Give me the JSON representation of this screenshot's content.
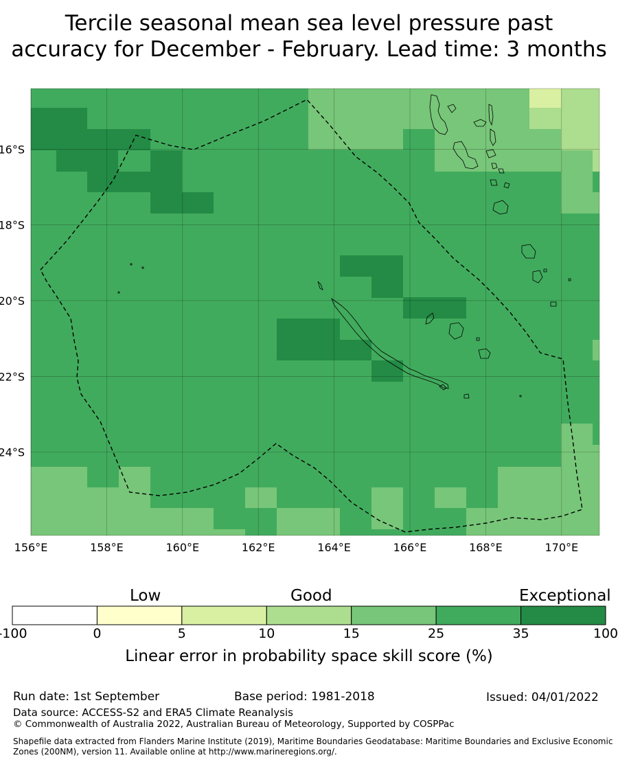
{
  "title": {
    "line1": "Tercile seasonal mean sea level pressure past",
    "line2": "accuracy for December - February. Lead time: 3 months"
  },
  "map": {
    "lon_ticks": [
      "156°E",
      "158°E",
      "160°E",
      "162°E",
      "164°E",
      "166°E",
      "168°E",
      "170°E"
    ],
    "lat_ticks": [
      "16°S",
      "18°S",
      "20°S",
      "22°S",
      "24°S"
    ],
    "extent": {
      "lon_min": 156,
      "lon_max": 171,
      "lat_min": -26.2,
      "lat_max": -14.4
    },
    "skill_grid_note_colors": {
      "35_100": "#238b45",
      "25_35": "#41ab5d",
      "15_25": "#78c679",
      "10_15": "#addd8e",
      "5_10": "#d9f0a3",
      "0_5": "#ffffcc"
    }
  },
  "colorbar": {
    "categories": [
      "Low",
      "Good",
      "Exceptional"
    ],
    "ticks": [
      "-100",
      "0",
      "5",
      "10",
      "15",
      "25",
      "35",
      "100"
    ],
    "colors": [
      "#ffffff",
      "#ffffcc",
      "#d9f0a3",
      "#addd8e",
      "#78c679",
      "#41ab5d",
      "#238b45"
    ],
    "label": "Linear error in probability space skill score (%)"
  },
  "footer": {
    "run_date": "Run date: 1st September",
    "base_period": "Base period: 1981-2018",
    "issued": "Issued: 04/01/2022",
    "data_source": "Data source: ACCESS-S2 and ERA5 Climate Reanalysis",
    "copyright": "© Commonwealth of Australia 2022, Australian Bureau of Meteorology, Supported by COSPPac",
    "shapefile_line1": "Shapefile data extracted from Flanders Marine Institute (2019), Maritime Boundaries Geodatabase: Maritime Boundaries and Exclusive Economic",
    "shapefile_line2": "Zones (200NM), version 11. Available online at http://www.marineregions.org/."
  }
}
